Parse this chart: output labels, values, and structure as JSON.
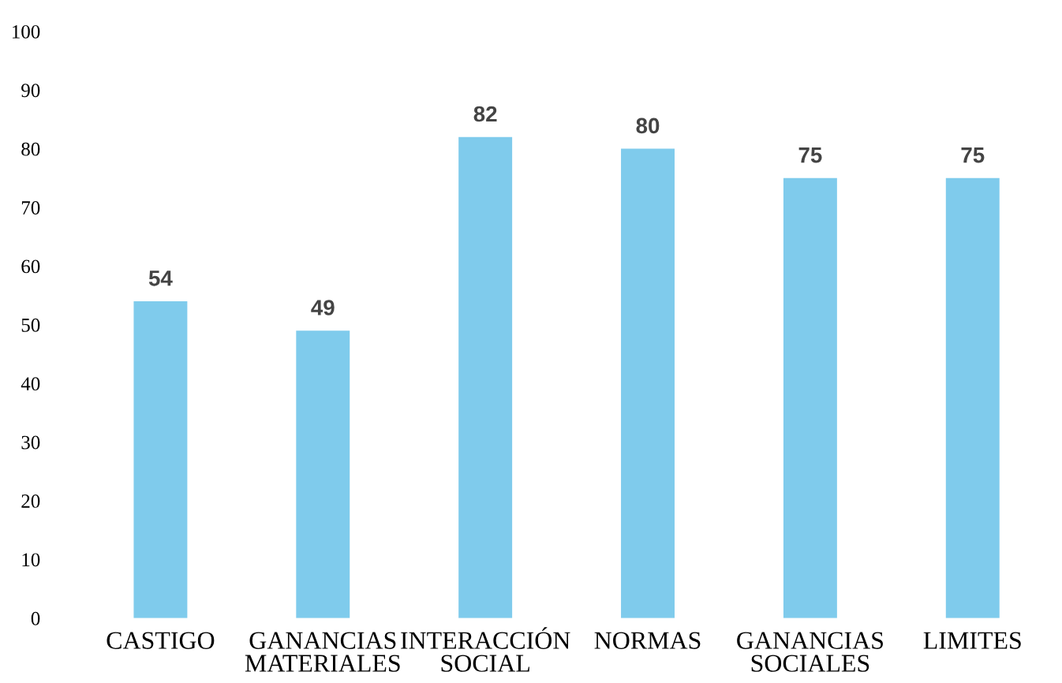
{
  "chart_data": {
    "type": "bar",
    "categories": [
      "CASTIGO",
      "GANANCIAS\nMATERIALES",
      "INTERACCIÓN\nSOCIAL",
      "NORMAS",
      "GANANCIAS\nSOCIALES",
      "LIMITES"
    ],
    "values": [
      54,
      49,
      82,
      80,
      75,
      75
    ],
    "color": "#7fcbec",
    "ylim": [
      0,
      100
    ],
    "yticks": [
      0,
      10,
      20,
      30,
      40,
      50,
      60,
      70,
      80,
      90,
      100
    ],
    "data_labels": true,
    "grid": false
  }
}
